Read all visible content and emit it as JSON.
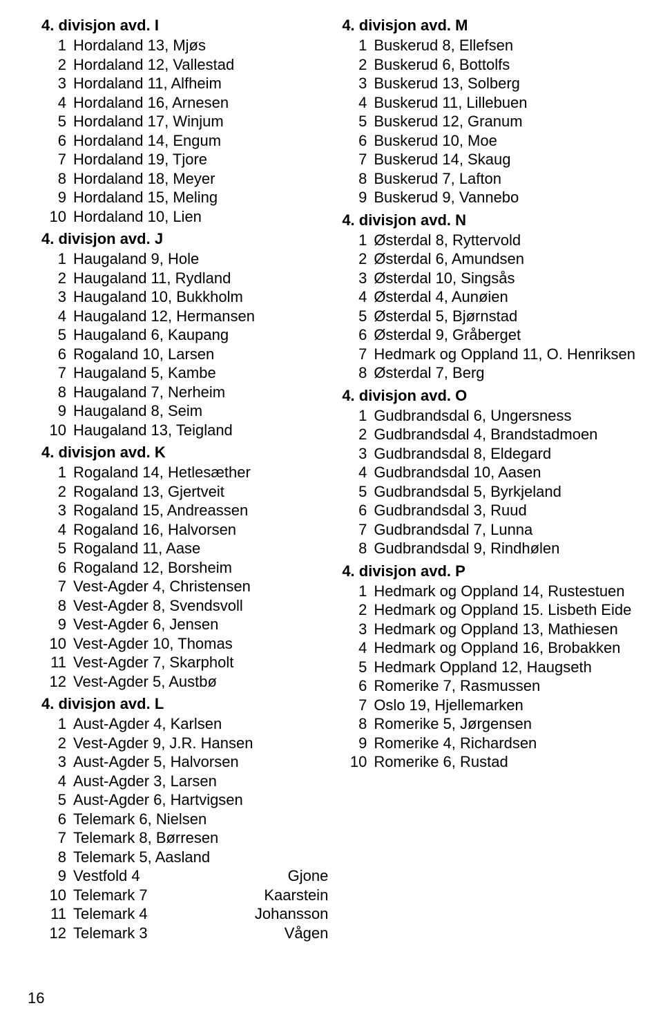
{
  "page_number": "16",
  "font_size_title": 22,
  "font_size_body": 22,
  "text_color": "#000000",
  "background_color": "#ffffff",
  "left_column": [
    {
      "title": "4. divisjon avd. I",
      "rows": [
        {
          "n": "1",
          "t": "Hordaland 13, Mjøs"
        },
        {
          "n": "2",
          "t": "Hordaland 12, Vallestad"
        },
        {
          "n": "3",
          "t": "Hordaland 11, Alfheim"
        },
        {
          "n": "4",
          "t": "Hordaland 16, Arnesen"
        },
        {
          "n": "5",
          "t": "Hordaland 17, Winjum"
        },
        {
          "n": "6",
          "t": "Hordaland 14, Engum"
        },
        {
          "n": "7",
          "t": "Hordaland 19, Tjore"
        },
        {
          "n": "8",
          "t": "Hordaland 18, Meyer"
        },
        {
          "n": "9",
          "t": "Hordaland 15, Meling"
        },
        {
          "n": "10",
          "t": "Hordaland 10, Lien"
        }
      ]
    },
    {
      "title": "4. divisjon avd. J",
      "rows": [
        {
          "n": "1",
          "t": "Haugaland 9, Hole"
        },
        {
          "n": "2",
          "t": "Haugaland 11, Rydland"
        },
        {
          "n": "3",
          "t": "Haugaland 10, Bukkholm"
        },
        {
          "n": "4",
          "t": "Haugaland 12, Hermansen"
        },
        {
          "n": "5",
          "t": "Haugaland 6, Kaupang"
        },
        {
          "n": "6",
          "t": "Rogaland 10, Larsen"
        },
        {
          "n": "7",
          "t": "Haugaland 5, Kambe"
        },
        {
          "n": "8",
          "t": "Haugaland 7, Nerheim"
        },
        {
          "n": "9",
          "t": "Haugaland 8, Seim"
        },
        {
          "n": "10",
          "t": "Haugaland 13, Teigland"
        }
      ]
    },
    {
      "title": "4. divisjon avd. K",
      "rows": [
        {
          "n": "1",
          "t": "Rogaland 14, Hetlesæther"
        },
        {
          "n": "2",
          "t": "Rogaland 13, Gjertveit"
        },
        {
          "n": "3",
          "t": "Rogaland 15, Andreassen"
        },
        {
          "n": "4",
          "t": "Rogaland 16, Halvorsen"
        },
        {
          "n": "5",
          "t": "Rogaland 11, Aase"
        },
        {
          "n": "6",
          "t": "Rogaland 12, Borsheim"
        },
        {
          "n": "7",
          "t": "Vest-Agder 4, Christensen"
        },
        {
          "n": "8",
          "t": "Vest-Agder 8, Svendsvoll"
        },
        {
          "n": "9",
          "t": "Vest-Agder 6, Jensen"
        },
        {
          "n": "10",
          "t": "Vest-Agder 10, Thomas"
        },
        {
          "n": "11",
          "t": "Vest-Agder 7, Skarpholt"
        },
        {
          "n": "12",
          "t": "Vest-Agder 5, Austbø"
        }
      ]
    },
    {
      "title": "4. divisjon avd. L",
      "rows": [
        {
          "n": "1",
          "t": "Aust-Agder 4, Karlsen"
        },
        {
          "n": "2",
          "t": "Vest-Agder 9, J.R. Hansen"
        },
        {
          "n": "3",
          "t": "Aust-Agder 5, Halvorsen"
        },
        {
          "n": "4",
          "t": "Aust-Agder 3, Larsen"
        },
        {
          "n": "5",
          "t": "Aust-Agder 6, Hartvigsen"
        },
        {
          "n": "6",
          "t": "Telemark 6, Nielsen"
        },
        {
          "n": "7",
          "t": "Telemark 8, Børresen"
        },
        {
          "n": "8",
          "t": "Telemark 5, Aasland"
        },
        {
          "n": "9",
          "t": "Vestfold 4",
          "e": "Gjone"
        },
        {
          "n": "10",
          "t": "Telemark 7",
          "e": "Kaarstein"
        },
        {
          "n": "11",
          "t": "Telemark 4",
          "e": "Johansson"
        },
        {
          "n": "12",
          "t": "Telemark 3",
          "e": "Vågen"
        }
      ]
    }
  ],
  "right_column": [
    {
      "title": "4. divisjon avd. M",
      "rows": [
        {
          "n": "1",
          "t": "Buskerud 8, Ellefsen"
        },
        {
          "n": "2",
          "t": "Buskerud 6, Bottolfs"
        },
        {
          "n": "3",
          "t": "Buskerud 13, Solberg"
        },
        {
          "n": "4",
          "t": "Buskerud 11, Lillebuen"
        },
        {
          "n": "5",
          "t": "Buskerud 12, Granum"
        },
        {
          "n": "6",
          "t": "Buskerud 10, Moe"
        },
        {
          "n": "7",
          "t": "Buskerud 14, Skaug"
        },
        {
          "n": "8",
          "t": "Buskerud 7, Lafton"
        },
        {
          "n": "9",
          "t": "Buskerud 9, Vannebo"
        }
      ]
    },
    {
      "title": "4. divisjon avd. N",
      "rows": [
        {
          "n": "1",
          "t": "Østerdal 8, Ryttervold"
        },
        {
          "n": "2",
          "t": "Østerdal 6, Amundsen"
        },
        {
          "n": "3",
          "t": "Østerdal 10, Singsås"
        },
        {
          "n": "4",
          "t": "Østerdal 4, Aunøien"
        },
        {
          "n": "5",
          "t": "Østerdal 5, Bjørnstad"
        },
        {
          "n": "6",
          "t": "Østerdal 9, Gråberget"
        },
        {
          "n": "7",
          "t": "Hedmark og Oppland 11, O. Henriksen"
        },
        {
          "n": "8",
          "t": "Østerdal 7, Berg"
        }
      ]
    },
    {
      "title": "4. divisjon avd. O",
      "rows": [
        {
          "n": "1",
          "t": "Gudbrandsdal 6, Ungersness"
        },
        {
          "n": "2",
          "t": "Gudbrandsdal 4, Brandstadmoen"
        },
        {
          "n": "3",
          "t": "Gudbrandsdal 8, Eldegard"
        },
        {
          "n": "4",
          "t": "Gudbrandsdal 10, Aasen"
        },
        {
          "n": "5",
          "t": "Gudbrandsdal 5, Byrkjeland"
        },
        {
          "n": "6",
          "t": "Gudbrandsdal 3, Ruud"
        },
        {
          "n": "7",
          "t": "Gudbrandsdal 7, Lunna"
        },
        {
          "n": "8",
          "t": "Gudbrandsdal 9, Rindhølen"
        }
      ]
    },
    {
      "title": "4. divisjon avd. P",
      "rows": [
        {
          "n": "1",
          "t": "Hedmark og Oppland 14, Rustestuen"
        },
        {
          "n": "2",
          "t": "Hedmark og Oppland 15. Lisbeth Eide"
        },
        {
          "n": "3",
          "t": "Hedmark og Oppland 13, Mathiesen"
        },
        {
          "n": "4",
          "t": "Hedmark og Oppland 16, Brobakken"
        },
        {
          "n": "5",
          "t": "Hedmark Oppland 12, Haugseth"
        },
        {
          "n": "6",
          "t": "Romerike 7, Rasmussen"
        },
        {
          "n": "7",
          "t": "Oslo 19, Hjellemarken"
        },
        {
          "n": "8",
          "t": "Romerike 5, Jørgensen"
        },
        {
          "n": "9",
          "t": "Romerike 4, Richardsen"
        },
        {
          "n": "10",
          "t": "Romerike 6, Rustad"
        }
      ]
    }
  ]
}
